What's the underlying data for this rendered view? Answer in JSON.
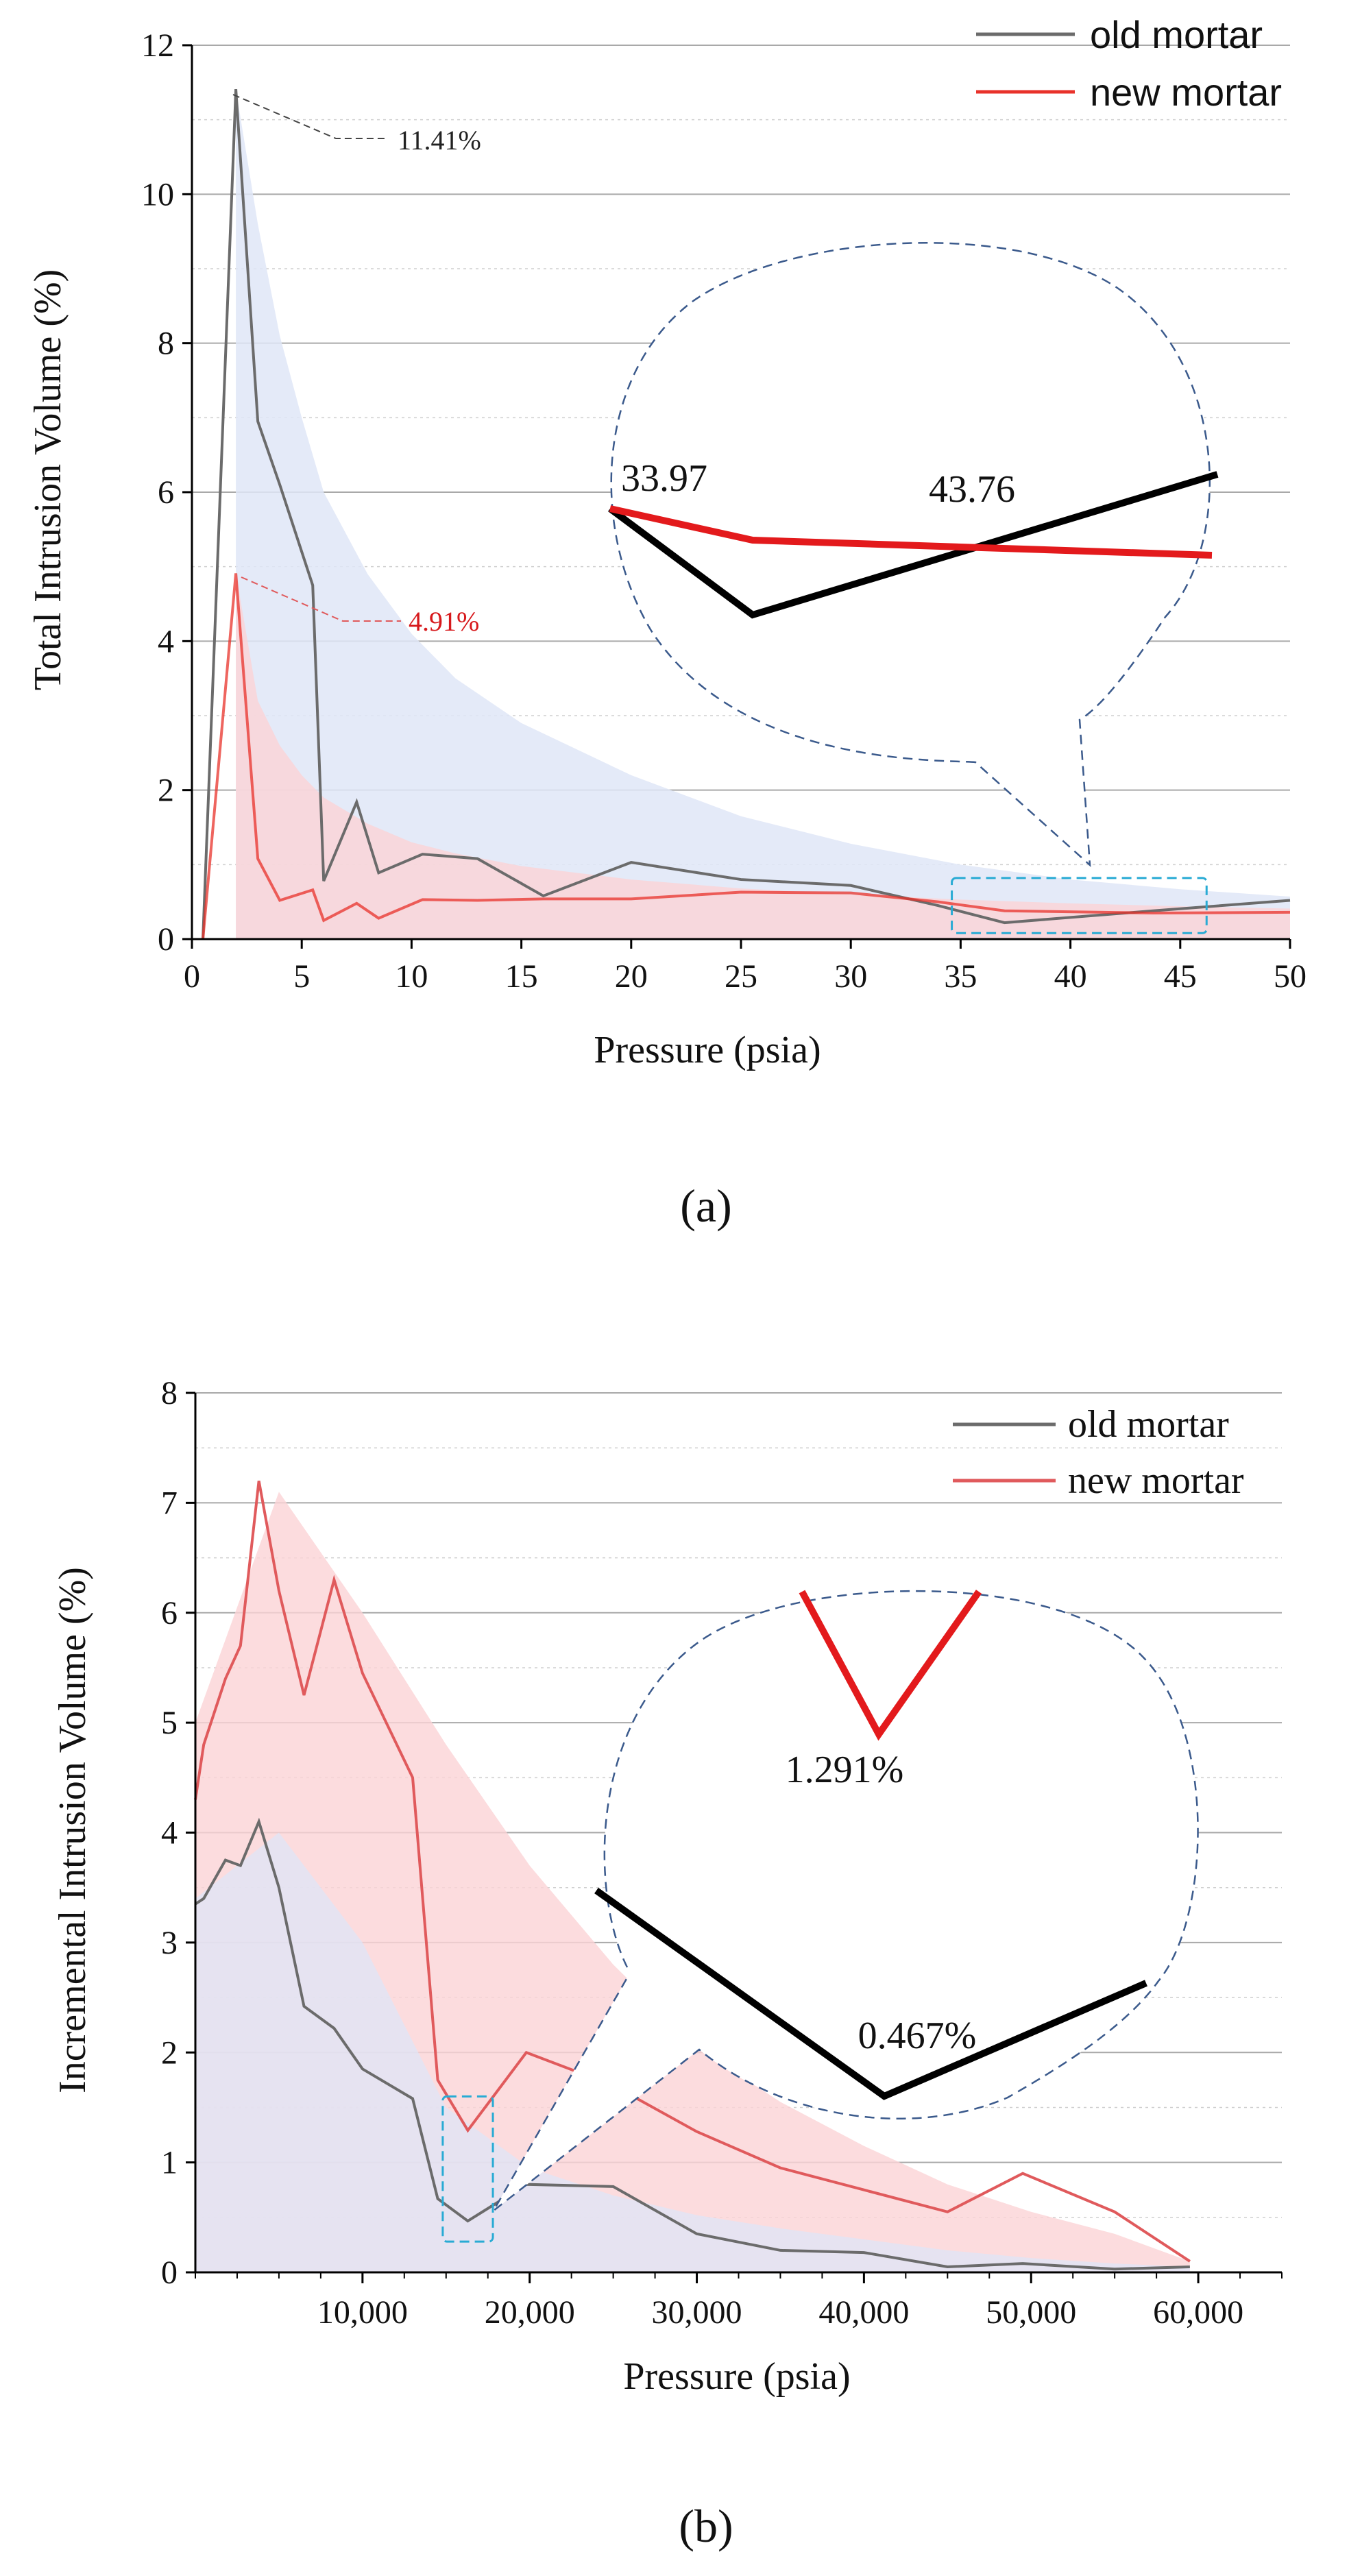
{
  "colors": {
    "old": "#6b6b6b",
    "new_a": "#e8312a",
    "new_b": "#e05a5c",
    "zoom_old": "#000000",
    "zoom_new": "#e31a1c",
    "band_blue": "#dfe6f7",
    "band_pink": "#fbd3d6",
    "highlight": "#29abd4",
    "bubble": "#3b5a8c"
  },
  "chart_data": [
    {
      "panel": "a",
      "type": "line",
      "caption": "(a)",
      "xlabel": "Pressure (psia)",
      "ylabel": "Total Intrusion Volume (%)",
      "xlim": [
        0,
        50
      ],
      "ylim": [
        0,
        12
      ],
      "xticks": [
        "0",
        "5",
        "10",
        "15",
        "20",
        "25",
        "30",
        "35",
        "40",
        "45",
        "50"
      ],
      "yticks": [
        "0",
        "2",
        "4",
        "6",
        "8",
        "10",
        "12"
      ],
      "legend": [
        "old mortar",
        "new mortar"
      ],
      "series": [
        {
          "name": "old mortar",
          "x": [
            0.5,
            2.0,
            3.0,
            4.0,
            5.5,
            6.0,
            7.5,
            8.5,
            10.5,
            13.0,
            16.0,
            20.0,
            25.0,
            30.0,
            33.97,
            37.0,
            43.76,
            50.0
          ],
          "y": [
            0.0,
            11.41,
            6.95,
            6.1,
            4.75,
            0.78,
            1.84,
            0.89,
            1.14,
            1.08,
            0.58,
            1.03,
            0.8,
            0.72,
            0.45,
            0.22,
            0.38,
            0.52
          ]
        },
        {
          "name": "new mortar",
          "x": [
            0.5,
            2.0,
            3.0,
            4.0,
            5.5,
            6.0,
            7.5,
            8.5,
            10.5,
            13.0,
            16.0,
            20.0,
            25.0,
            30.0,
            33.97,
            37.0,
            43.76,
            50.0
          ],
          "y": [
            0.0,
            4.91,
            1.08,
            0.52,
            0.66,
            0.25,
            0.48,
            0.28,
            0.53,
            0.52,
            0.54,
            0.54,
            0.63,
            0.62,
            0.5,
            0.38,
            0.35,
            0.36
          ]
        }
      ],
      "bands": [
        {
          "name": "old mortar envelope",
          "x": [
            2,
            3,
            4,
            5,
            6,
            8,
            10,
            12,
            15,
            20,
            25,
            30,
            35,
            40,
            45,
            50
          ],
          "y": [
            11.41,
            9.6,
            8.1,
            7.0,
            6.0,
            4.9,
            4.1,
            3.5,
            2.9,
            2.2,
            1.65,
            1.28,
            1.0,
            0.8,
            0.67,
            0.57
          ]
        },
        {
          "name": "new mortar envelope",
          "x": [
            2,
            3,
            4,
            5,
            6,
            8,
            10,
            12,
            15,
            20,
            25,
            30,
            35,
            40,
            45,
            50
          ],
          "y": [
            4.91,
            3.2,
            2.6,
            2.2,
            1.9,
            1.55,
            1.3,
            1.15,
            0.98,
            0.8,
            0.68,
            0.6,
            0.53,
            0.48,
            0.44,
            0.41
          ]
        }
      ],
      "annotations": [
        {
          "text": "11.41%",
          "series": "old mortar",
          "x": 2.0,
          "y": 11.41
        },
        {
          "text": "4.91%",
          "series": "new mortar",
          "x": 2.0,
          "y": 4.91
        }
      ],
      "highlight": {
        "x": [
          34.6,
          46.2
        ],
        "y": [
          0.08,
          0.82
        ]
      },
      "zoom": {
        "labels": [
          "33.97",
          "43.76"
        ]
      }
    },
    {
      "panel": "b",
      "type": "line",
      "caption": "(b)",
      "xlabel": "Pressure (psia)",
      "ylabel": "Incremental Intrusion Volume (%)",
      "xlim": [
        0,
        65000
      ],
      "ylim": [
        0,
        8
      ],
      "xticks": [
        "10,000",
        "20,000",
        "30,000",
        "40,000",
        "50,000",
        "60,000"
      ],
      "yticks": [
        "0",
        "1",
        "2",
        "3",
        "4",
        "5",
        "6",
        "7",
        "8"
      ],
      "legend": [
        "old mortar",
        "new mortar"
      ],
      "series": [
        {
          "name": "old mortar",
          "x": [
            0,
            500,
            1800,
            2700,
            3800,
            5000,
            6500,
            8300,
            10000,
            13000,
            14500,
            16300,
            19800,
            25000,
            30000,
            35000,
            40000,
            45000,
            49500,
            55000,
            59500
          ],
          "y": [
            3.35,
            3.4,
            3.75,
            3.7,
            4.1,
            3.5,
            2.42,
            2.22,
            1.85,
            1.58,
            0.67,
            0.467,
            0.8,
            0.78,
            0.35,
            0.2,
            0.18,
            0.05,
            0.08,
            0.03,
            0.05
          ]
        },
        {
          "name": "new mortar",
          "x": [
            0,
            500,
            1800,
            2700,
            3800,
            5000,
            6500,
            8300,
            10000,
            13000,
            14500,
            16300,
            19800,
            25000,
            30000,
            35000,
            40000,
            45000,
            49500,
            55000,
            59500
          ],
          "y": [
            4.3,
            4.8,
            5.4,
            5.7,
            7.2,
            6.2,
            5.25,
            6.3,
            5.45,
            4.5,
            1.75,
            1.291,
            2.0,
            1.7,
            1.28,
            0.95,
            0.75,
            0.55,
            0.9,
            0.55,
            0.1
          ]
        }
      ],
      "bands": [
        {
          "name": "new mortar envelope",
          "x": [
            0,
            5000,
            10000,
            15000,
            20000,
            25000,
            30000,
            35000,
            40000,
            45000,
            50000,
            55000,
            59500
          ],
          "y": [
            5.0,
            7.1,
            6.0,
            4.8,
            3.7,
            2.8,
            2.05,
            1.55,
            1.15,
            0.8,
            0.55,
            0.35,
            0.1
          ]
        },
        {
          "name": "old mortar envelope",
          "x": [
            0,
            5000,
            10000,
            15000,
            20000,
            25000,
            30000,
            35000,
            40000,
            45000,
            50000,
            55000,
            59500
          ],
          "y": [
            3.4,
            4.0,
            3.0,
            1.5,
            0.95,
            0.7,
            0.52,
            0.4,
            0.3,
            0.2,
            0.13,
            0.08,
            0.05
          ]
        }
      ],
      "highlight": {
        "x": [
          14800,
          17800
        ],
        "y": [
          0.28,
          1.6
        ]
      },
      "zoom": {
        "labels": [
          "1.291%",
          "0.467%"
        ]
      }
    }
  ]
}
